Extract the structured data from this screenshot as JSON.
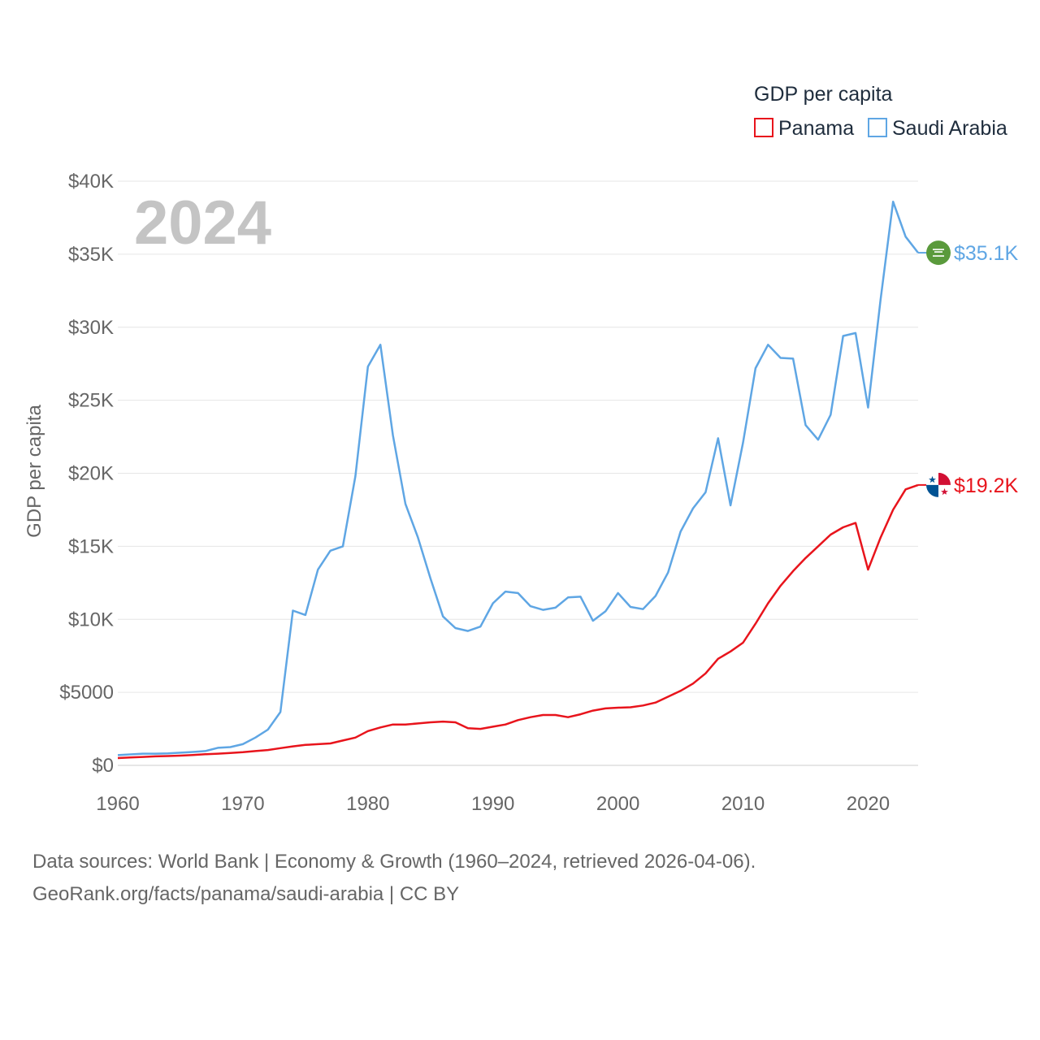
{
  "chart_data": {
    "type": "line",
    "title": "GDP per capita",
    "year_display": "2024",
    "xlabel": "",
    "ylabel": "GDP per capita",
    "xlim": [
      1960,
      2024
    ],
    "ylim": [
      0,
      40000
    ],
    "x_ticks": [
      1960,
      1970,
      1980,
      1990,
      2000,
      2010,
      2020
    ],
    "x_tick_labels": [
      "1960",
      "1970",
      "1980",
      "1990",
      "2000",
      "2010",
      "2020"
    ],
    "y_ticks": [
      0,
      5000,
      10000,
      15000,
      20000,
      25000,
      30000,
      35000,
      40000
    ],
    "y_tick_labels": [
      "$0",
      "$5000",
      "$10K",
      "$15K",
      "$20K",
      "$25K",
      "$30K",
      "$35K",
      "$40K"
    ],
    "grid": true,
    "legend_position": "top-right",
    "x": [
      1960,
      1961,
      1962,
      1963,
      1964,
      1965,
      1966,
      1967,
      1968,
      1969,
      1970,
      1971,
      1972,
      1973,
      1974,
      1975,
      1976,
      1977,
      1978,
      1979,
      1980,
      1981,
      1982,
      1983,
      1984,
      1985,
      1986,
      1987,
      1988,
      1989,
      1990,
      1991,
      1992,
      1993,
      1994,
      1995,
      1996,
      1997,
      1998,
      1999,
      2000,
      2001,
      2002,
      2003,
      2004,
      2005,
      2006,
      2007,
      2008,
      2009,
      2010,
      2011,
      2012,
      2013,
      2014,
      2015,
      2016,
      2017,
      2018,
      2019,
      2020,
      2021,
      2022,
      2023,
      2024
    ],
    "series": [
      {
        "name": "Panama",
        "color": "#e8141c",
        "end_label": "$19.2K",
        "flag_icon": "panama-flag-icon",
        "values": [
          500,
          540,
          580,
          620,
          640,
          670,
          710,
          760,
          800,
          850,
          900,
          980,
          1050,
          1180,
          1300,
          1400,
          1450,
          1500,
          1700,
          1900,
          2350,
          2600,
          2800,
          2800,
          2870,
          2950,
          3000,
          2950,
          2550,
          2500,
          2650,
          2800,
          3100,
          3300,
          3450,
          3450,
          3300,
          3500,
          3750,
          3900,
          3950,
          3980,
          4100,
          4300,
          4700,
          5100,
          5600,
          6300,
          7300,
          7800,
          8400,
          9700,
          11100,
          12300,
          13300,
          14200,
          15000,
          15800,
          16300,
          16600,
          13400,
          15600,
          17500,
          18900,
          19200
        ]
      },
      {
        "name": "Saudi Arabia",
        "color": "#5fa6e4",
        "end_label": "$35.1K",
        "flag_icon": "saudi-arabia-flag-icon",
        "values": [
          700,
          750,
          800,
          800,
          820,
          870,
          920,
          980,
          1200,
          1250,
          1450,
          1900,
          2450,
          3650,
          10600,
          10300,
          13400,
          14700,
          15000,
          19800,
          27300,
          28800,
          22600,
          17900,
          15600,
          12800,
          10200,
          9400,
          9200,
          9500,
          11100,
          11900,
          11800,
          10900,
          10650,
          10800,
          11500,
          11550,
          9900,
          10550,
          11800,
          10850,
          10700,
          11600,
          13200,
          16000,
          17600,
          18700,
          22400,
          17800,
          22100,
          27200,
          28800,
          27900,
          27850,
          23300,
          22300,
          24000,
          29400,
          29600,
          24500,
          31900,
          38600,
          36200,
          35100
        ]
      }
    ]
  },
  "footer": {
    "line1": "Data sources: World Bank | Economy & Growth (1960–2024, retrieved 2026-04-06).",
    "line2": "GeoRank.org/facts/panama/saudi-arabia | CC BY"
  }
}
